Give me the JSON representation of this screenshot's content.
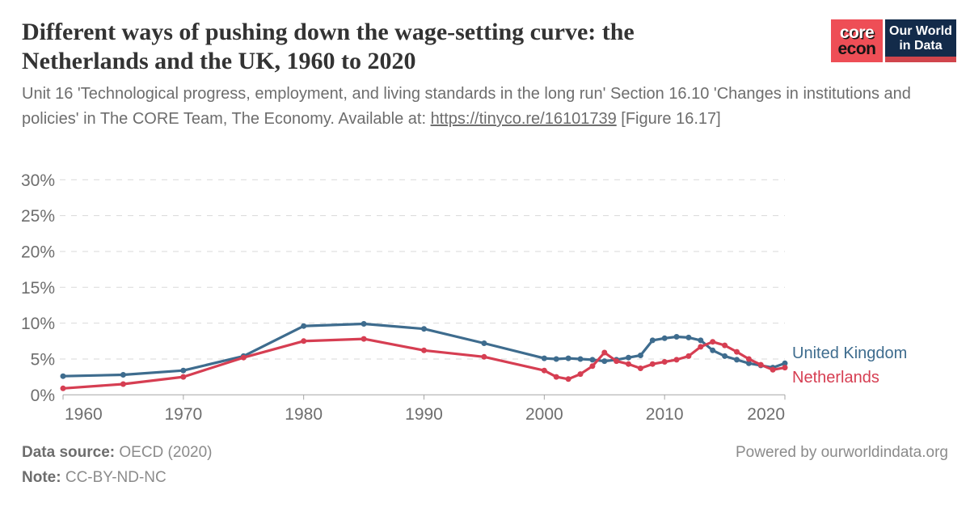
{
  "header": {
    "title": "Different ways of pushing down the wage-setting curve: the Netherlands and the UK, 1960 to 2020",
    "subtitle_before": "Unit 16 'Technological progress, employment, and living standards in the long run' Section 16.10 'Changes in institutions and policies' in The CORE Team, The Economy. Available at: ",
    "subtitle_link": "https://tinyco.re/16101739",
    "subtitle_after": " [Figure 16.17]",
    "logos": {
      "core_line1": "core",
      "core_line2": "econ",
      "owid_line1": "Our World",
      "owid_line2": "in Data"
    }
  },
  "chart_data": {
    "type": "line",
    "title": "Different ways of pushing down the wage-setting curve: the Netherlands and the UK, 1960 to 2020",
    "x": [
      1960,
      1965,
      1970,
      1975,
      1980,
      1985,
      1990,
      1995,
      2000,
      2001,
      2002,
      2003,
      2004,
      2005,
      2006,
      2007,
      2008,
      2009,
      2010,
      2011,
      2012,
      2013,
      2014,
      2015,
      2016,
      2017,
      2018,
      2019,
      2020
    ],
    "series": [
      {
        "name": "United Kingdom",
        "color": "#3e6c8e",
        "values": [
          2.6,
          2.8,
          3.4,
          5.4,
          9.6,
          9.9,
          9.2,
          7.2,
          5.1,
          5.0,
          5.1,
          5.0,
          4.9,
          4.7,
          4.9,
          5.2,
          5.5,
          7.6,
          7.9,
          8.1,
          8.0,
          7.6,
          6.2,
          5.4,
          4.9,
          4.4,
          4.1,
          3.8,
          4.4
        ]
      },
      {
        "name": "Netherlands",
        "color": "#d63e52",
        "values": [
          0.9,
          1.5,
          2.5,
          5.2,
          7.5,
          7.8,
          6.2,
          5.3,
          3.4,
          2.5,
          2.2,
          2.9,
          4.0,
          5.9,
          4.7,
          4.3,
          3.7,
          4.3,
          4.6,
          4.9,
          5.4,
          6.7,
          7.4,
          6.9,
          6.0,
          5.0,
          4.2,
          3.5,
          3.8
        ]
      }
    ],
    "xlabel": "",
    "ylabel": "",
    "xlim": [
      1960,
      2020
    ],
    "ylim": [
      0,
      30
    ],
    "yticks": [
      0,
      5,
      10,
      15,
      20,
      25,
      30
    ],
    "ytick_suffix": "%",
    "xticks": [
      1960,
      1970,
      1980,
      1990,
      2000,
      2010,
      2020
    ],
    "grid": "horizontal-dashed",
    "legend_position": "right-of-lines"
  },
  "footer": {
    "source_label": "Data source:",
    "source_value": " OECD (2020)",
    "note_label": "Note:",
    "note_value": " CC-BY-ND-NC",
    "powered_by": "Powered by ourworldindata.org"
  },
  "colors": {
    "uk_line": "#3e6c8e",
    "nl_line": "#d63e52",
    "grid": "#d9d9d9",
    "axis": "#a5a5a5",
    "tick_label": "#6e6e6e",
    "title_text": "#333333",
    "subtitle_text": "#6d6d6d",
    "footer_text": "#8b8b8b",
    "core_logo_bg": "#ee4e56",
    "owid_logo_bg": "#132b4a",
    "owid_logo_bar": "#d0454c"
  }
}
